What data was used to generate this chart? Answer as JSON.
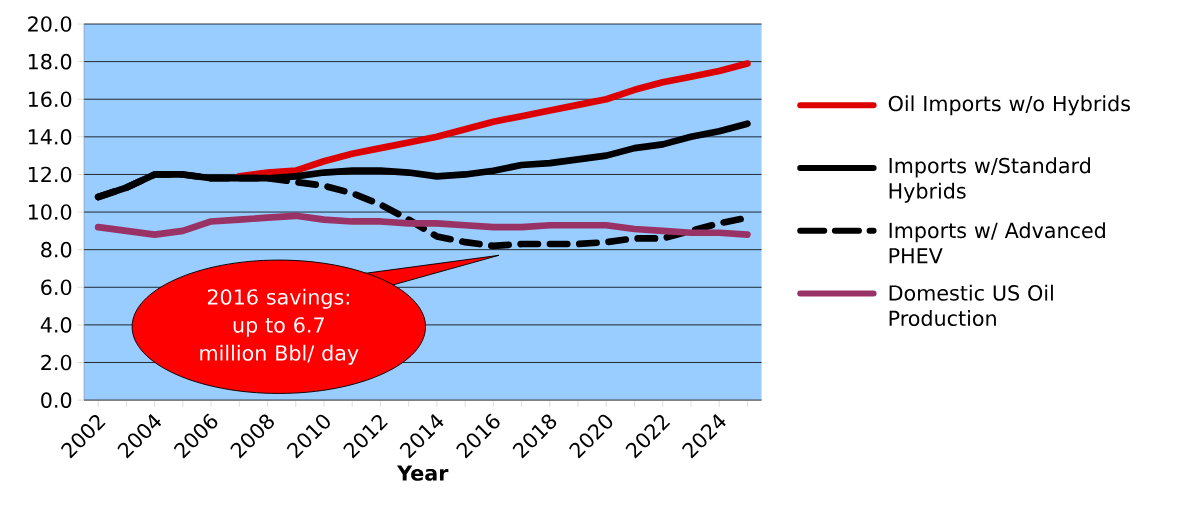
{
  "chart_data": {
    "type": "line",
    "xlabel": "Year",
    "categories": [
      "2002",
      null,
      "2004",
      null,
      "2006",
      null,
      "2008",
      null,
      "2010",
      null,
      "2012",
      null,
      "2014",
      null,
      "2016",
      null,
      "2018",
      null,
      "2020",
      null,
      "2022",
      null,
      "2024",
      null
    ],
    "series": [
      {
        "name": "Oil Imports w/o Hybrids",
        "color": "#dd0000",
        "line_style": "solid",
        "values": [
          null,
          null,
          null,
          null,
          null,
          11.9,
          12.1,
          12.2,
          12.7,
          13.1,
          13.4,
          13.7,
          14.0,
          14.4,
          14.8,
          15.1,
          15.4,
          15.7,
          16.0,
          16.5,
          16.9,
          17.2,
          17.5,
          17.9
        ]
      },
      {
        "name": "Imports w/Standard Hybrids",
        "color": "#000000",
        "line_style": "solid",
        "values": [
          10.8,
          11.3,
          12.0,
          12.0,
          11.8,
          11.8,
          11.8,
          11.9,
          12.1,
          12.2,
          12.2,
          12.1,
          11.9,
          12.0,
          12.2,
          12.5,
          12.6,
          12.8,
          13.0,
          13.4,
          13.6,
          14.0,
          14.3,
          14.7
        ]
      },
      {
        "name": "Imports w/ Advanced PHEV",
        "color": "#000000",
        "line_style": "dashed",
        "values": [
          10.8,
          11.3,
          12.0,
          12.0,
          11.8,
          11.8,
          11.8,
          11.6,
          11.4,
          11.0,
          10.4,
          9.6,
          8.7,
          8.4,
          8.2,
          8.3,
          8.3,
          8.3,
          8.4,
          8.6,
          8.6,
          9.0,
          9.4,
          9.7
        ]
      },
      {
        "name": "Domestic US Oil Production",
        "color": "#993366",
        "line_style": "solid",
        "values": [
          9.2,
          9.0,
          8.8,
          9.0,
          9.5,
          9.6,
          9.7,
          9.8,
          9.6,
          9.5,
          9.5,
          9.4,
          9.4,
          9.3,
          9.2,
          9.2,
          9.3,
          9.3,
          9.3,
          9.1,
          9.0,
          8.9,
          8.9,
          8.8
        ]
      }
    ],
    "ylim": [
      0,
      20
    ],
    "yticks": [
      {
        "value": 0,
        "label": "0.0"
      },
      {
        "value": 2,
        "label": "2.0"
      },
      {
        "value": 4,
        "label": "4.0"
      },
      {
        "value": 6,
        "label": "6.0"
      },
      {
        "value": 8,
        "label": "8.0"
      },
      {
        "value": 10,
        "label": "10.0"
      },
      {
        "value": 12,
        "label": "12.0"
      },
      {
        "value": 14,
        "label": "14.0"
      },
      {
        "value": 16,
        "label": "16.0"
      },
      {
        "value": 18,
        "label": "18.0"
      },
      {
        "value": 20,
        "label": "20.0"
      }
    ],
    "grid": "y",
    "legend": "right",
    "marker": "none",
    "annotations": [
      "2016 savings: up to 6.7 million Bbl/ day"
    ]
  }
}
